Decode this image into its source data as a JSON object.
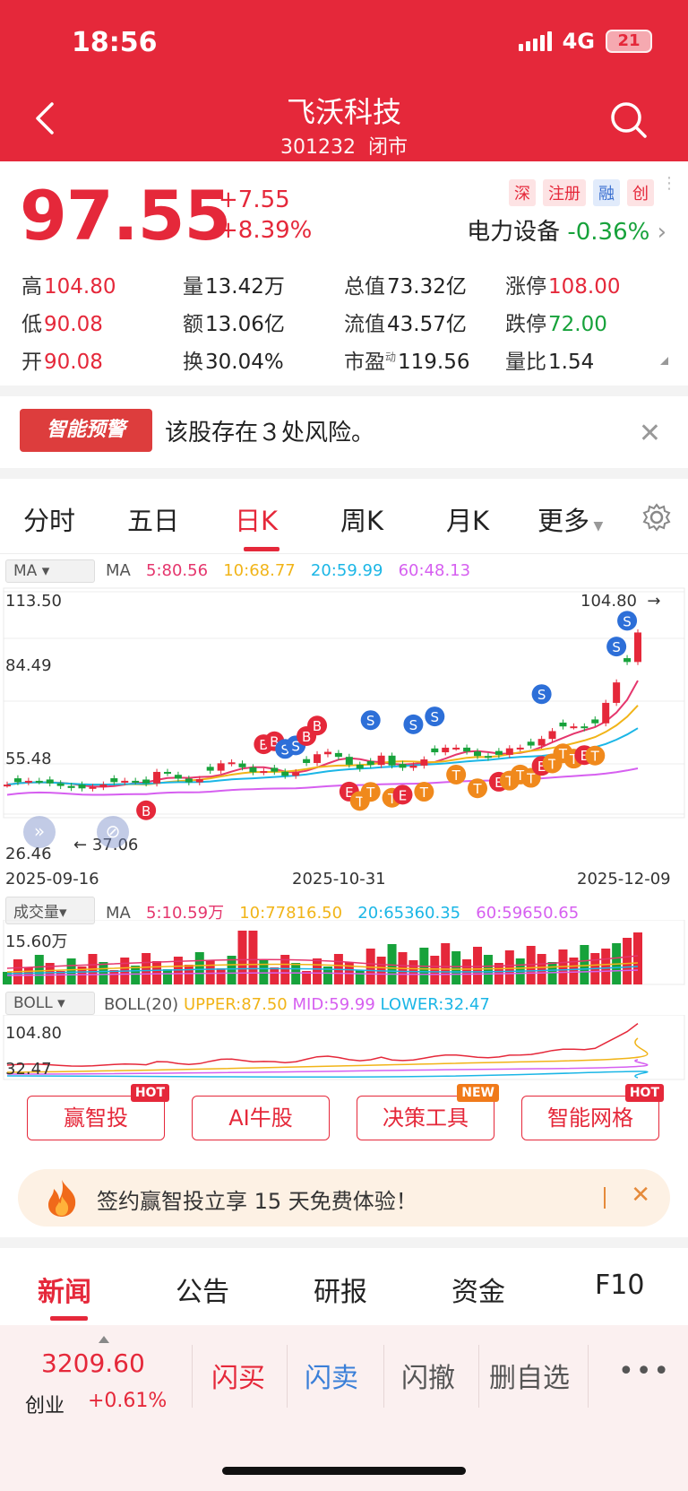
{
  "status_bar": {
    "time": "18:56",
    "network": "4G",
    "battery": "21"
  },
  "header": {
    "title": "飞沃科技",
    "code": "301232",
    "market_status": "闭市"
  },
  "quote": {
    "price": "97.55",
    "change": "+7.55",
    "change_pct": "+8.39%",
    "tags": [
      "深",
      "注册",
      "融",
      "创"
    ],
    "sector_name": "电力设备",
    "sector_change": "-0.36%"
  },
  "stats": [
    [
      {
        "k": "高",
        "v": "104.80",
        "c": "red"
      },
      {
        "k": "量",
        "v": "13.42万",
        "c": "black"
      },
      {
        "k": "总值",
        "v": "73.32亿",
        "c": "black"
      },
      {
        "k": "涨停",
        "v": "108.00",
        "c": "red"
      }
    ],
    [
      {
        "k": "低",
        "v": "90.08",
        "c": "red"
      },
      {
        "k": "额",
        "v": "13.06亿",
        "c": "black"
      },
      {
        "k": "流值",
        "v": "43.57亿",
        "c": "black"
      },
      {
        "k": "跌停",
        "v": "72.00",
        "c": "green"
      }
    ],
    [
      {
        "k": "开",
        "v": "90.08",
        "c": "red"
      },
      {
        "k": "换",
        "v": "30.04%",
        "c": "black"
      },
      {
        "k": "市盈",
        "v": "119.56",
        "c": "black"
      },
      {
        "k": "量比",
        "v": "1.54",
        "c": "black"
      }
    ]
  ],
  "pe_superscript": "动",
  "alert": {
    "badge": "智能预警",
    "text": "该股存在３处风险。"
  },
  "chart_tabs": [
    "分时",
    "五日",
    "日K",
    "周K",
    "月K",
    "更多"
  ],
  "active_tab": "日K",
  "kline": {
    "indicator_select": "MA",
    "ma_label": "MA",
    "ma5": "5:80.56",
    "ma10": "10:68.77",
    "ma20": "20:59.99",
    "ma60": "60:48.13",
    "y_ticks": [
      "113.50",
      "84.49",
      "55.48",
      "26.46"
    ],
    "high_marker": "104.80",
    "low_marker": "37.06",
    "x_ticks": [
      "2025-09-16",
      "2025-10-31",
      "2025-12-09"
    ],
    "colors": {
      "ma5": "#e5366d",
      "ma10": "#f1b418",
      "ma20": "#1bb6e6",
      "ma60": "#d65ff0",
      "up": "#e5283a",
      "down": "#17a23b"
    }
  },
  "volume": {
    "indicator_select": "成交量",
    "ma_label": "MA",
    "ma5": "5:10.59万",
    "ma10": "10:77816.50",
    "ma20": "20:65360.35",
    "ma60": "60:59650.65",
    "y_tick": "15.60万"
  },
  "boll": {
    "indicator_select": "BOLL",
    "label": "BOLL(20)",
    "upper": "UPPER:87.50",
    "mid": "MID:59.99",
    "lower": "LOWER:32.47",
    "y_ticks": [
      "104.80",
      "32.47"
    ]
  },
  "tools": [
    {
      "label": "赢智投",
      "badge": "HOT"
    },
    {
      "label": "AI牛股",
      "badge": ""
    },
    {
      "label": "决策工具",
      "badge": "NEW"
    },
    {
      "label": "智能网格",
      "badge": "HOT"
    }
  ],
  "promo": {
    "text": "签约赢智投立享 15 天免费体验！"
  },
  "news_tabs": [
    "新闻",
    "公告",
    "研报",
    "资金",
    "F10"
  ],
  "bottom_bar": {
    "index_value": "3209.60",
    "index_name": "创业",
    "index_change": "+0.61%",
    "actions": [
      "闪买",
      "闪卖",
      "闪撤",
      "删自选"
    ]
  }
}
